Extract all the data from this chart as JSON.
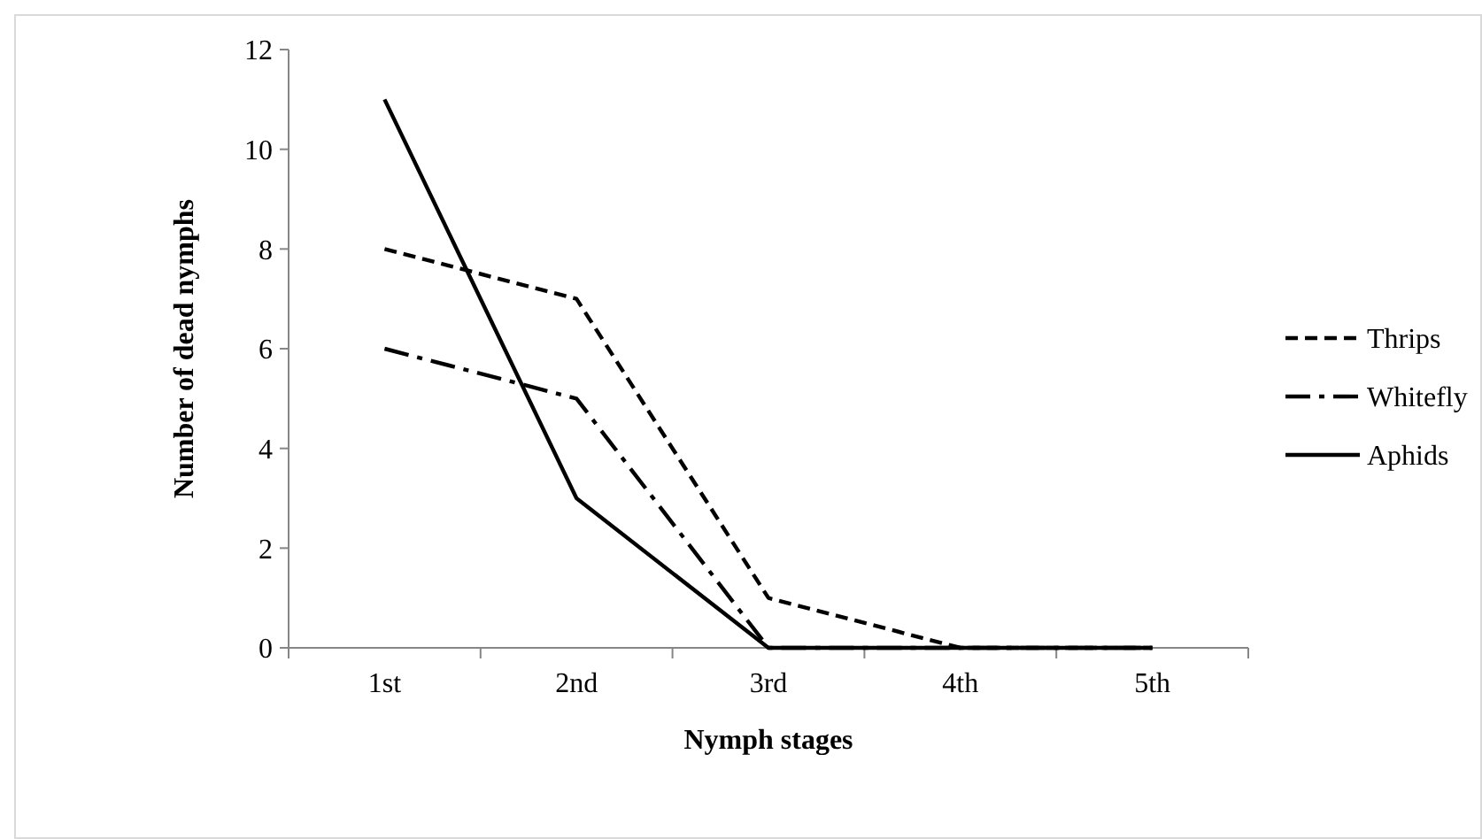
{
  "chart_data": {
    "type": "line",
    "xlabel": "Nymph stages",
    "ylabel": "Number of dead nymphs",
    "categories": [
      "1st",
      "2nd",
      "3rd",
      "4th",
      "5th"
    ],
    "series": [
      {
        "name": "Thrips",
        "color": "#000000",
        "line_style": "dashed",
        "values": [
          8,
          7,
          1,
          0,
          0
        ]
      },
      {
        "name": "Whitefly",
        "color": "#000000",
        "line_style": "dashdot",
        "values": [
          6,
          5,
          0,
          0,
          0
        ]
      },
      {
        "name": "Aphids",
        "color": "#000000",
        "line_style": "solid",
        "values": [
          11,
          3,
          0,
          0,
          0
        ]
      }
    ],
    "ylim": [
      0,
      12
    ],
    "yticks": [
      0,
      2,
      4,
      6,
      8,
      10,
      12
    ],
    "grid": false,
    "legend": "right",
    "marker": "none"
  }
}
